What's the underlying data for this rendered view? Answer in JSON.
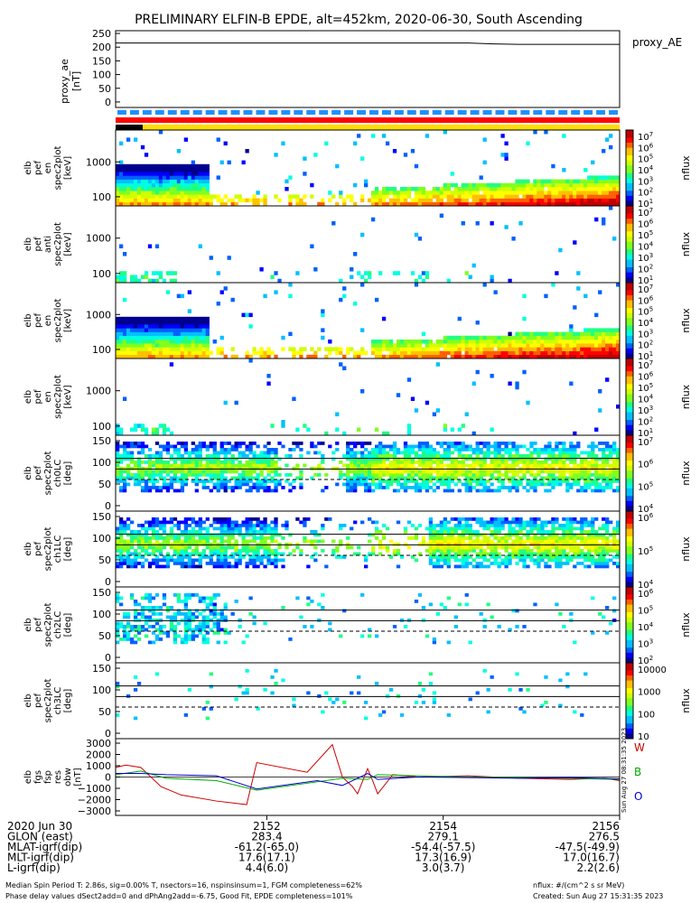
{
  "title": "PRELIMINARY ELFIN-B EPDE, alt=452km, 2020-06-30, South Ascending",
  "colors": {
    "east": "#cc0000",
    "north": "#00aa00",
    "up": "#0000cc",
    "accent_red": "#ff0000",
    "accent_yellow": "#ffdd00",
    "accent_blue": "#1e90ff"
  },
  "chart_data": [
    {
      "type": "line",
      "panel": "proxy_ae",
      "ylabel": [
        "proxy_ae",
        "[nT]"
      ],
      "right_label": "proxy_AE",
      "ylim": [
        -20,
        260
      ],
      "yticks": [
        250,
        200,
        150,
        100,
        50,
        0
      ],
      "x": [
        0,
        0.1,
        0.2,
        0.3,
        0.4,
        0.5,
        0.6,
        0.7,
        0.75,
        0.8,
        0.9,
        1.0
      ],
      "values": [
        215,
        215,
        215,
        215,
        215,
        215,
        215,
        215,
        212,
        210,
        210,
        210
      ]
    },
    {
      "type": "heatmap",
      "panel": "pef_en",
      "ylabel": [
        "elb",
        "pef",
        "en",
        "spec2plot",
        "[keV]"
      ],
      "ytick_labels": [
        "1000",
        "100"
      ],
      "cbar_label": "nflux",
      "cbar_ticks": [
        "10^7",
        "10^6",
        "10^5",
        "10^4",
        "10^3",
        "10^2",
        "10^1"
      ],
      "density": "high"
    },
    {
      "type": "heatmap",
      "panel": "pef_anti",
      "ylabel": [
        "elb",
        "pef",
        "anti",
        "spec2plot",
        "[keV]"
      ],
      "ytick_labels": [
        "1000",
        "100"
      ],
      "cbar_label": "nflux",
      "cbar_ticks": [
        "10^7",
        "10^6",
        "10^5",
        "10^4",
        "10^3",
        "10^2",
        "10^1"
      ],
      "density": "low"
    },
    {
      "type": "heatmap",
      "panel": "pef_perp",
      "ylabel": [
        "elb",
        "pef",
        "en",
        "spec2plot",
        "[keV]"
      ],
      "ytick_labels": [
        "1000",
        "100"
      ],
      "cbar_label": "nflux",
      "cbar_ticks": [
        "10^7",
        "10^6",
        "10^5",
        "10^4",
        "10^3",
        "10^2",
        "10^1"
      ],
      "density": "high"
    },
    {
      "type": "heatmap",
      "panel": "pef_para",
      "ylabel": [
        "elb",
        "pef",
        "en",
        "spec2plot",
        "[keV]"
      ],
      "ytick_labels": [
        "1000",
        "100"
      ],
      "cbar_label": "nflux",
      "cbar_ticks": [
        "10^7",
        "10^6",
        "10^5",
        "10^4",
        "10^3",
        "10^2",
        "10^1"
      ],
      "density": "low"
    },
    {
      "type": "heatmap",
      "panel": "ch0LC",
      "ylabel": [
        "elb",
        "pef",
        "spec2plot",
        "ch0LC",
        "[deg]"
      ],
      "ytick_labels": [
        "150",
        "100",
        "50",
        "0"
      ],
      "cbar_label": "nflux",
      "cbar_ticks": [
        "10^7",
        "10^6",
        "10^5",
        "10^4"
      ],
      "density": "pa"
    },
    {
      "type": "heatmap",
      "panel": "ch1LC",
      "ylabel": [
        "elb",
        "pef",
        "spec2plot",
        "ch1LC",
        "[deg]"
      ],
      "ytick_labels": [
        "150",
        "100",
        "50",
        "0"
      ],
      "cbar_label": "nflux",
      "cbar_ticks": [
        "10^6",
        "10^5",
        "10^4"
      ],
      "density": "pa"
    },
    {
      "type": "heatmap",
      "panel": "ch2LC",
      "ylabel": [
        "elb",
        "pef",
        "spec2plot",
        "ch2LC",
        "[deg]"
      ],
      "ytick_labels": [
        "150",
        "100",
        "50",
        "0"
      ],
      "cbar_label": "nflux",
      "cbar_ticks": [
        "10^6",
        "10^5",
        "10^4",
        "10^3",
        "10^2"
      ],
      "density": "pa_sparse"
    },
    {
      "type": "heatmap",
      "panel": "ch3LC",
      "ylabel": [
        "elb",
        "pef",
        "spec2plot",
        "ch3LC",
        "[deg]"
      ],
      "ytick_labels": [
        "150",
        "100",
        "50",
        "0"
      ],
      "cbar_label": "nflux",
      "cbar_ticks": [
        "10000",
        "1000",
        "100",
        "10"
      ],
      "density": "pa_very_sparse"
    },
    {
      "type": "line",
      "panel": "fgs",
      "ylabel": [
        "elb",
        "fgs",
        "fsp",
        "res",
        "obw",
        "[nT]"
      ],
      "ylim": [
        -3200,
        3200
      ],
      "yticks": [
        "3000",
        "2000",
        "1000",
        "0",
        "−1000",
        "−2000",
        "−3000"
      ],
      "legend": [
        "W",
        "B",
        "O"
      ],
      "stamp": "Sun Aug 27 08:31:35 2023",
      "series": [
        {
          "name": "W",
          "color": "#cc0000",
          "x": [
            0,
            0.02,
            0.05,
            0.09,
            0.13,
            0.2,
            0.26,
            0.28,
            0.38,
            0.43,
            0.45,
            0.47,
            0.48,
            0.5,
            0.51,
            0.52,
            0.55,
            0.6,
            0.7,
            0.8,
            0.9,
            0.97,
            1.0
          ],
          "values": [
            800,
            1000,
            800,
            -800,
            -1500,
            -2000,
            -2300,
            1200,
            400,
            2700,
            0,
            -800,
            -1400,
            700,
            -300,
            -1400,
            200,
            0,
            100,
            -100,
            -200,
            -100,
            -300
          ]
        },
        {
          "name": "B",
          "color": "#00aa00",
          "x": [
            0,
            0.05,
            0.1,
            0.2,
            0.28,
            0.4,
            0.45,
            0.5,
            0.52,
            0.6,
            0.7,
            0.8,
            0.9,
            1.0
          ],
          "values": [
            200,
            500,
            -100,
            -300,
            -1100,
            -400,
            -100,
            -200,
            200,
            100,
            0,
            -50,
            -100,
            -200
          ]
        },
        {
          "name": "O",
          "color": "#0000cc",
          "x": [
            0,
            0.05,
            0.1,
            0.2,
            0.28,
            0.4,
            0.45,
            0.5,
            0.52,
            0.6,
            0.7,
            0.8,
            0.9,
            1.0
          ],
          "values": [
            300,
            300,
            200,
            100,
            -1000,
            -300,
            -700,
            300,
            -200,
            0,
            -50,
            -100,
            -50,
            -150
          ]
        }
      ]
    }
  ],
  "xaxis": {
    "row_labels": [
      "2020 Jun 30",
      "GLON (east)",
      "MLAT-igrf(dip)",
      "MLT-igrf(dip)",
      "L-igrf(dip)"
    ],
    "columns": [
      {
        "pos": 0.3,
        "values": [
          "2152",
          "283.4",
          "-61.2(-65.0)",
          "17.6(17.1)",
          "4.4(6.0)"
        ]
      },
      {
        "pos": 0.65,
        "values": [
          "2154",
          "279.1",
          "-54.4(-57.5)",
          "17.3(16.9)",
          "3.0(3.7)"
        ]
      },
      {
        "pos": 1.0,
        "values": [
          "2156",
          "276.5",
          "-47.5(-49.9)",
          "17.0(16.7)",
          "2.2(2.6)"
        ]
      }
    ]
  },
  "footer": {
    "left1": "Median Spin Period T: 2.86s, sig=0.00% T, nsectors=16, nspinsinsum=1, FGM completeness=62%",
    "left2": "Phase delay values dSect2add=0 and dPhAng2add=-6.75, Good Fit, EPDE completeness=101%",
    "right1": "nflux: #/(cm^2 s sr MeV)",
    "right2": "Created: Sun Aug 27 15:31:35 2023"
  }
}
